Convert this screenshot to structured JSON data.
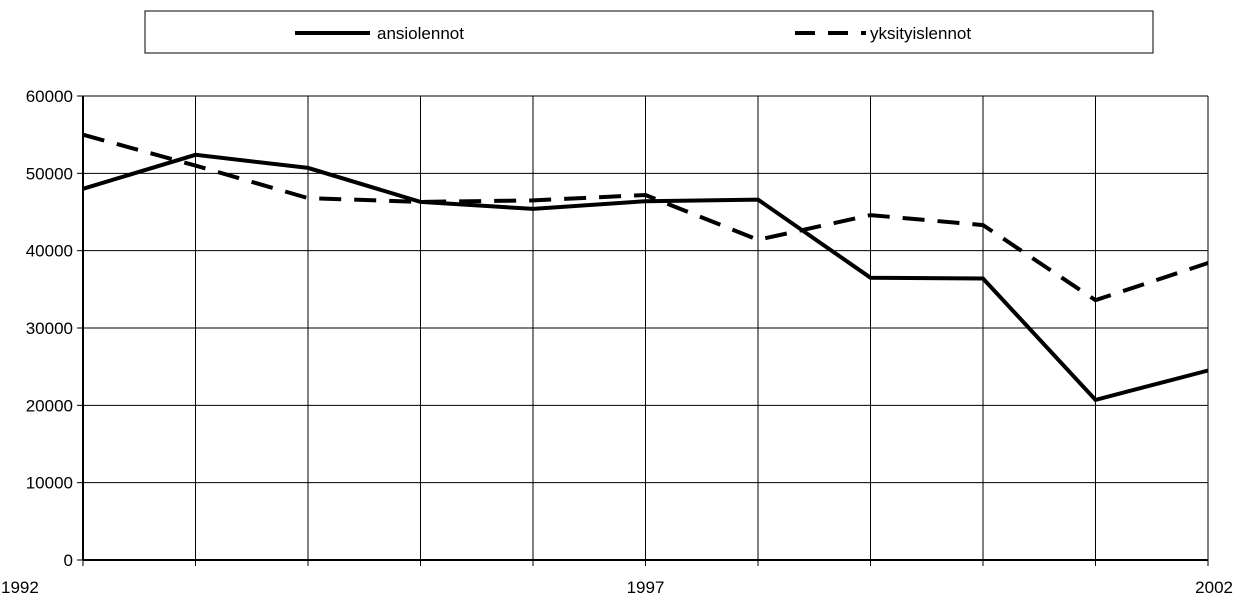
{
  "chart_data": {
    "type": "line",
    "x": [
      1992,
      1993,
      1994,
      1995,
      1996,
      1997,
      1998,
      1999,
      2000,
      2001,
      2002
    ],
    "x_tick_labels": [
      "1992",
      "1997",
      "2002"
    ],
    "y_tick_labels": [
      "0",
      "10000",
      "20000",
      "30000",
      "40000",
      "50000",
      "60000"
    ],
    "ylim": [
      0,
      60000
    ],
    "xlim": [
      1992,
      2002
    ],
    "grid": true,
    "legend_position": "top",
    "series": [
      {
        "name": "ansiolennot",
        "style": "solid",
        "color": "#000000",
        "values": [
          48000,
          52400,
          50700,
          46300,
          45400,
          46400,
          46600,
          36500,
          36400,
          20700,
          24500
        ]
      },
      {
        "name": "yksityislennot",
        "style": "dashed",
        "color": "#000000",
        "values": [
          55000,
          51000,
          46800,
          46300,
          46500,
          47200,
          41400,
          44600,
          43300,
          33600,
          38400
        ]
      }
    ]
  }
}
